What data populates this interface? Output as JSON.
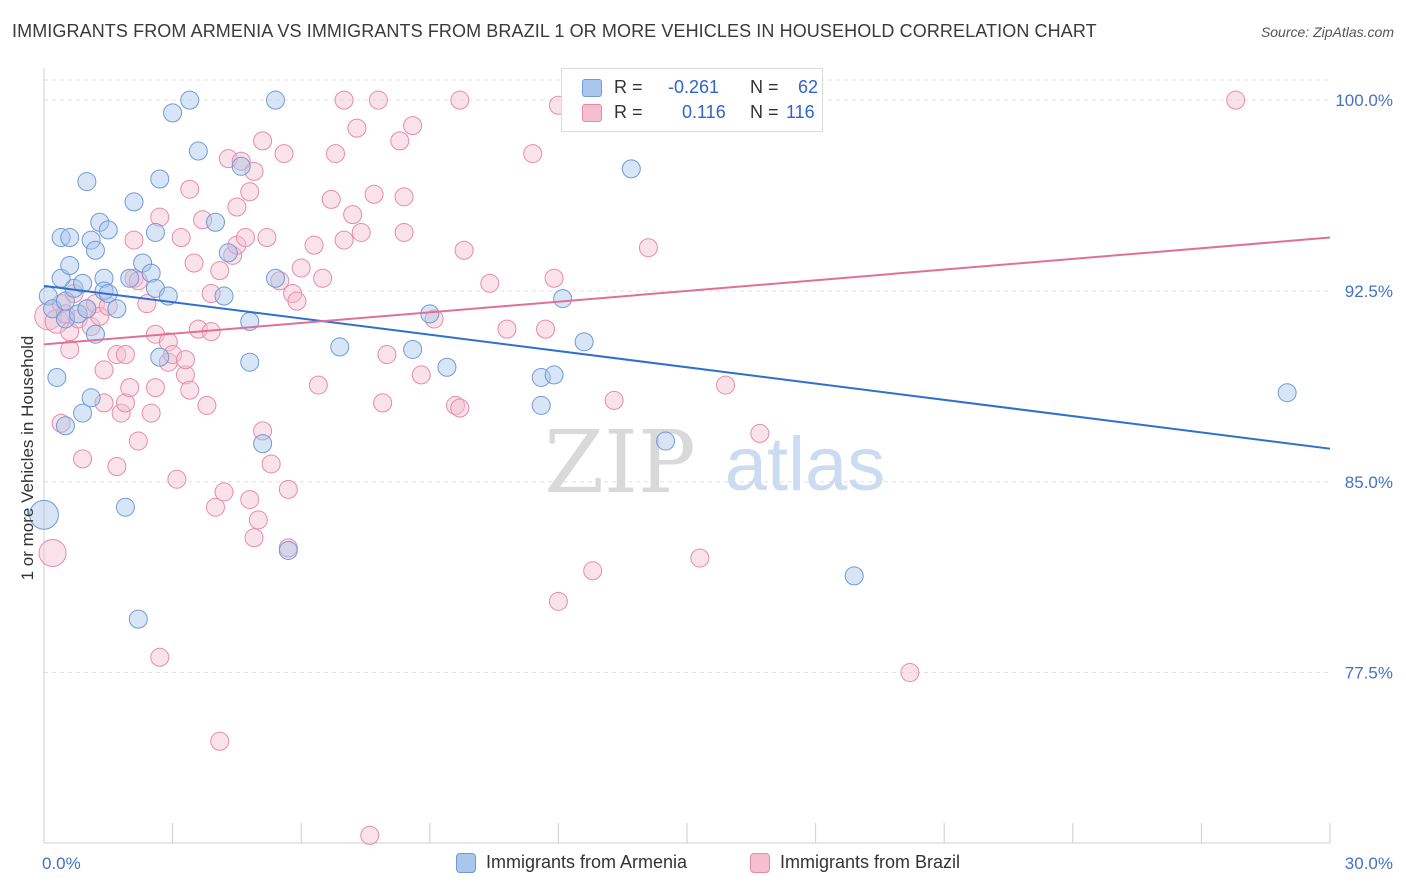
{
  "title": "IMMIGRANTS FROM ARMENIA VS IMMIGRANTS FROM BRAZIL 1 OR MORE VEHICLES IN HOUSEHOLD CORRELATION CHART",
  "source": "Source: ZipAtlas.com",
  "watermark": {
    "zip": "ZIP",
    "atlas": "atlas"
  },
  "legend_top": {
    "rows": [
      {
        "r_label": "R =",
        "r_value": "-0.261",
        "n_label": "N =",
        "n_value": "62"
      },
      {
        "r_label": "R =",
        "r_value": "0.116",
        "n_label": "N =",
        "n_value": "116"
      }
    ]
  },
  "legend_bottom": [
    {
      "label": "Immigrants from Armenia"
    },
    {
      "label": "Immigrants from Brazil"
    }
  ],
  "colors": {
    "armenia_fill": "#a9c6ec",
    "armenia_stroke": "#6f9ad6",
    "armenia_line": "#2f6fcf",
    "brazil_fill": "#f5bfd0",
    "brazil_stroke": "#e98aaa",
    "brazil_line": "#e0709a",
    "tick_label": "#4472c4",
    "grid": "#e2e2e2"
  },
  "chart_data": {
    "type": "scatter",
    "title": "IMMIGRANTS FROM ARMENIA VS IMMIGRANTS FROM BRAZIL 1 OR MORE VEHICLES IN HOUSEHOLD CORRELATION CHART",
    "xlabel": "",
    "ylabel": "1 or more Vehicles in Household",
    "xlim": [
      0,
      30
    ],
    "ylim": [
      70.8,
      101.5
    ],
    "x_tick_labels": [
      "0.0%",
      "30.0%"
    ],
    "y_ticks": [
      77.5,
      85.0,
      92.5,
      100.0
    ],
    "y_tick_labels": [
      "77.5%",
      "85.0%",
      "92.5%",
      "100.0%"
    ],
    "grid": true,
    "legend_placement": "top-center",
    "series": [
      {
        "name": "Immigrants from Armenia",
        "r": -0.261,
        "n": 62,
        "trend": {
          "x": [
            0,
            30
          ],
          "y": [
            92.7,
            86.3
          ]
        },
        "points": [
          [
            0.1,
            92.3,
            1
          ],
          [
            0.2,
            91.8,
            1
          ],
          [
            0.3,
            89.1,
            1
          ],
          [
            0.4,
            94.6,
            1
          ],
          [
            0.4,
            93.0,
            1
          ],
          [
            0.5,
            92.1,
            1
          ],
          [
            0.5,
            91.4,
            1
          ],
          [
            0.5,
            87.2,
            1
          ],
          [
            0.6,
            94.6,
            1
          ],
          [
            0.6,
            93.5,
            1
          ],
          [
            0.7,
            92.6,
            1
          ],
          [
            0.8,
            91.6,
            1
          ],
          [
            0.9,
            92.8,
            1
          ],
          [
            0.9,
            87.7,
            1
          ],
          [
            1.0,
            96.8,
            1
          ],
          [
            1.0,
            91.8,
            1
          ],
          [
            1.1,
            88.3,
            1
          ],
          [
            1.1,
            94.5,
            1
          ],
          [
            1.2,
            94.1,
            1
          ],
          [
            1.2,
            90.8,
            1
          ],
          [
            1.3,
            95.2,
            1
          ],
          [
            1.4,
            93.0,
            1
          ],
          [
            1.4,
            92.5,
            1
          ],
          [
            1.5,
            92.4,
            1
          ],
          [
            1.5,
            94.9,
            1
          ],
          [
            1.7,
            91.8,
            1
          ],
          [
            1.9,
            84.0,
            1
          ],
          [
            2.0,
            93.0,
            1
          ],
          [
            2.1,
            96.0,
            1
          ],
          [
            2.2,
            79.6,
            1
          ],
          [
            2.3,
            93.6,
            1
          ],
          [
            2.5,
            93.2,
            1
          ],
          [
            2.6,
            94.8,
            1
          ],
          [
            2.6,
            92.6,
            1
          ],
          [
            2.7,
            89.9,
            1
          ],
          [
            2.7,
            96.9,
            1
          ],
          [
            2.9,
            92.3,
            1
          ],
          [
            3.0,
            99.5,
            1
          ],
          [
            3.4,
            100.0,
            1
          ],
          [
            3.6,
            98.0,
            1
          ],
          [
            4.0,
            95.2,
            1
          ],
          [
            4.2,
            92.3,
            1
          ],
          [
            4.3,
            94.0,
            1
          ],
          [
            4.6,
            97.4,
            1
          ],
          [
            4.8,
            91.3,
            1
          ],
          [
            4.8,
            89.7,
            1
          ],
          [
            5.1,
            86.5,
            1
          ],
          [
            5.4,
            93.0,
            1
          ],
          [
            5.4,
            100.0,
            1
          ],
          [
            5.7,
            82.3,
            1
          ],
          [
            6.9,
            90.3,
            1
          ],
          [
            8.6,
            90.2,
            1
          ],
          [
            9.0,
            91.6,
            1
          ],
          [
            9.4,
            89.5,
            1
          ],
          [
            11.6,
            89.1,
            1
          ],
          [
            11.6,
            88.0,
            1
          ],
          [
            11.9,
            89.2,
            1
          ],
          [
            12.1,
            92.2,
            1
          ],
          [
            12.6,
            90.5,
            1
          ],
          [
            13.7,
            97.3,
            1
          ],
          [
            14.5,
            86.6,
            1
          ],
          [
            18.9,
            81.3,
            1
          ],
          [
            29.0,
            88.5,
            1
          ],
          [
            0.0,
            83.7,
            1.6
          ]
        ]
      },
      {
        "name": "Immigrants from Brazil",
        "r": 0.116,
        "n": 116,
        "trend": {
          "x": [
            0,
            30
          ],
          "y": [
            90.4,
            94.6
          ]
        },
        "points": [
          [
            0.1,
            91.5,
            1.5
          ],
          [
            0.2,
            82.2,
            1.5
          ],
          [
            0.3,
            91.3,
            1.3
          ],
          [
            0.4,
            92.0,
            1
          ],
          [
            0.4,
            87.3,
            1
          ],
          [
            0.5,
            91.6,
            1
          ],
          [
            0.6,
            90.9,
            1
          ],
          [
            0.6,
            90.2,
            1
          ],
          [
            0.7,
            92.4,
            1
          ],
          [
            0.8,
            91.4,
            1
          ],
          [
            0.9,
            85.9,
            1
          ],
          [
            1.0,
            91.8,
            1
          ],
          [
            1.1,
            91.1,
            1
          ],
          [
            1.2,
            92.0,
            1
          ],
          [
            1.3,
            91.5,
            1
          ],
          [
            1.4,
            88.1,
            1
          ],
          [
            1.4,
            89.4,
            1
          ],
          [
            1.5,
            91.9,
            1
          ],
          [
            1.7,
            90.0,
            1
          ],
          [
            1.7,
            85.6,
            1
          ],
          [
            1.8,
            87.7,
            1
          ],
          [
            1.9,
            90.0,
            1
          ],
          [
            1.9,
            88.1,
            1
          ],
          [
            2.0,
            88.7,
            1
          ],
          [
            2.1,
            94.5,
            1
          ],
          [
            2.1,
            93.0,
            1
          ],
          [
            2.2,
            92.9,
            1
          ],
          [
            2.2,
            86.6,
            1
          ],
          [
            2.4,
            92.0,
            1
          ],
          [
            2.5,
            87.7,
            1
          ],
          [
            2.6,
            88.7,
            1
          ],
          [
            2.6,
            90.8,
            1
          ],
          [
            2.7,
            95.4,
            1
          ],
          [
            2.7,
            78.1,
            1
          ],
          [
            2.9,
            89.7,
            1
          ],
          [
            2.9,
            90.5,
            1
          ],
          [
            3.0,
            90.0,
            1
          ],
          [
            3.1,
            85.1,
            1
          ],
          [
            3.2,
            94.6,
            1
          ],
          [
            3.3,
            89.2,
            1
          ],
          [
            3.3,
            89.8,
            1
          ],
          [
            3.4,
            88.6,
            1
          ],
          [
            3.4,
            96.5,
            1
          ],
          [
            3.5,
            93.6,
            1
          ],
          [
            3.6,
            91.0,
            1
          ],
          [
            3.7,
            95.3,
            1
          ],
          [
            3.8,
            88.0,
            1
          ],
          [
            3.9,
            90.9,
            1
          ],
          [
            3.9,
            92.4,
            1
          ],
          [
            4.0,
            84.0,
            1
          ],
          [
            4.1,
            93.3,
            1
          ],
          [
            4.1,
            74.8,
            1
          ],
          [
            4.2,
            84.6,
            1
          ],
          [
            4.3,
            97.7,
            1
          ],
          [
            4.4,
            93.9,
            1
          ],
          [
            4.5,
            95.8,
            1
          ],
          [
            4.5,
            94.3,
            1
          ],
          [
            4.6,
            97.6,
            1
          ],
          [
            4.7,
            94.6,
            1
          ],
          [
            4.8,
            96.4,
            1
          ],
          [
            4.8,
            84.3,
            1
          ],
          [
            4.9,
            97.2,
            1
          ],
          [
            4.9,
            82.8,
            1
          ],
          [
            5.0,
            83.5,
            1
          ],
          [
            5.1,
            98.4,
            1
          ],
          [
            5.1,
            87.0,
            1
          ],
          [
            5.2,
            94.6,
            1
          ],
          [
            5.3,
            85.7,
            1
          ],
          [
            5.5,
            92.9,
            1
          ],
          [
            5.6,
            97.9,
            1
          ],
          [
            5.7,
            82.4,
            1
          ],
          [
            5.7,
            84.7,
            1
          ],
          [
            5.8,
            92.4,
            1
          ],
          [
            5.9,
            92.1,
            1
          ],
          [
            6.0,
            93.4,
            1
          ],
          [
            6.3,
            94.3,
            1
          ],
          [
            6.4,
            88.8,
            1
          ],
          [
            6.5,
            93.0,
            1
          ],
          [
            6.7,
            96.1,
            1
          ],
          [
            6.8,
            97.9,
            1
          ],
          [
            7.0,
            100.0,
            1
          ],
          [
            7.0,
            94.5,
            1
          ],
          [
            7.2,
            95.5,
            1
          ],
          [
            7.3,
            98.9,
            1
          ],
          [
            7.4,
            94.8,
            1
          ],
          [
            7.6,
            71.1,
            1
          ],
          [
            7.7,
            96.3,
            1
          ],
          [
            7.8,
            100.0,
            1
          ],
          [
            7.9,
            88.1,
            1
          ],
          [
            8.0,
            90.0,
            1
          ],
          [
            8.3,
            98.4,
            1
          ],
          [
            8.4,
            96.2,
            1
          ],
          [
            8.4,
            94.8,
            1
          ],
          [
            8.6,
            99.0,
            1
          ],
          [
            8.8,
            89.2,
            1
          ],
          [
            9.1,
            91.4,
            1
          ],
          [
            9.6,
            88.0,
            1
          ],
          [
            9.7,
            100.0,
            1
          ],
          [
            9.8,
            94.1,
            1
          ],
          [
            10.4,
            92.8,
            1
          ],
          [
            10.8,
            91.0,
            1
          ],
          [
            11.4,
            97.9,
            1
          ],
          [
            11.9,
            93.0,
            1
          ],
          [
            12.0,
            80.3,
            1
          ],
          [
            11.7,
            91.0,
            1
          ],
          [
            12.9,
            100.0,
            1
          ],
          [
            12.8,
            81.5,
            1
          ],
          [
            13.3,
            88.2,
            1
          ],
          [
            14.1,
            94.2,
            1
          ],
          [
            15.3,
            82.0,
            1
          ],
          [
            15.9,
            88.8,
            1
          ],
          [
            16.7,
            86.9,
            1
          ],
          [
            20.2,
            77.5,
            1
          ],
          [
            27.8,
            100.0,
            1
          ],
          [
            9.7,
            87.9,
            1
          ],
          [
            12.0,
            99.8,
            1
          ]
        ]
      }
    ]
  }
}
